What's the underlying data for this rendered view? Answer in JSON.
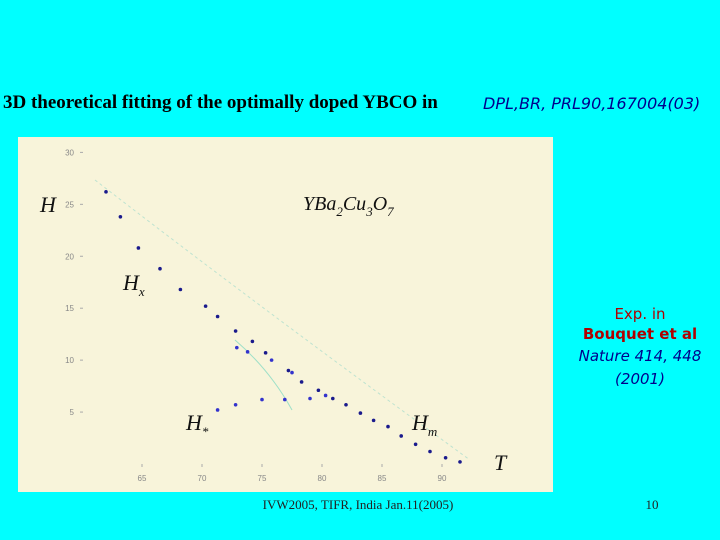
{
  "title": "3D theoretical fitting of the optimally doped YBCO in",
  "reference": "DPL,BR, PRL90,167004(03)",
  "experiment": {
    "line1": "Exp. in",
    "line2": "Bouquet et al",
    "line3": "Nature 414, 448",
    "line4": "(2001)"
  },
  "footer": "IVW2005, TIFR, India Jan.11(2005)",
  "page_number": "10",
  "chart_data": {
    "type": "scatter",
    "y_label": "H",
    "x_label": "T",
    "formula": [
      "YBa",
      "2",
      "Cu",
      "3",
      "O",
      "7"
    ],
    "annotations": [
      [
        "H",
        "x"
      ],
      [
        "H",
        "*"
      ],
      [
        "H",
        "m"
      ]
    ],
    "xlim": [
      61,
      92.5
    ],
    "ylim": [
      0,
      31
    ],
    "xticks": [
      65,
      70,
      75,
      80,
      85,
      90
    ],
    "yticks": [
      5,
      10,
      15,
      20,
      25,
      30
    ],
    "series": [
      {
        "color": "#1a1a8c",
        "x": [
          62,
          63.2,
          64.7,
          66.5,
          68.2,
          70.3,
          71.3,
          72.8,
          74.2,
          75.3,
          77.2,
          78.3,
          79.7,
          80.9,
          82.0,
          83.2,
          84.3,
          85.5,
          86.6,
          87.8,
          89,
          90.3,
          91.5
        ],
        "values": [
          26.2,
          23.8,
          20.8,
          18.8,
          16.8,
          15.2,
          14.2,
          12.8,
          11.8,
          10.7,
          9.0,
          7.9,
          7.1,
          6.3,
          5.7,
          4.9,
          4.2,
          3.6,
          2.7,
          1.9,
          1.2,
          0.6,
          0.2
        ]
      },
      {
        "color": "#3333cc",
        "x": [
          71.3,
          72.8,
          75,
          76.9,
          79,
          80.3,
          72.9,
          73.8,
          75.8,
          77.5
        ],
        "values": [
          5.2,
          5.7,
          6.2,
          6.2,
          6.3,
          6.6,
          11.2,
          10.8,
          10.0,
          8.8
        ]
      }
    ]
  }
}
